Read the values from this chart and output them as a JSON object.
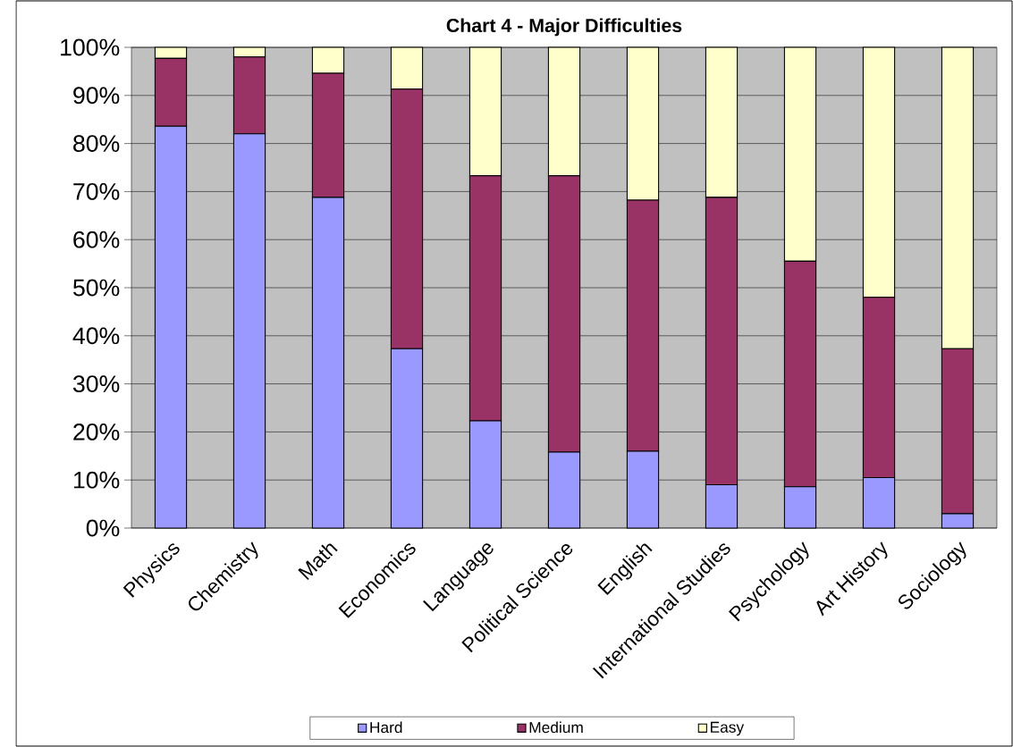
{
  "chart_data": {
    "type": "bar",
    "title": "Chart 4 - Major Difficulties",
    "stacked": true,
    "categories": [
      "Physics",
      "Chemistry",
      "Math",
      "Economics",
      "Language",
      "Political Science",
      "English",
      "International Studies",
      "Psychology",
      "Art History",
      "Sociology"
    ],
    "series": [
      {
        "name": "Hard",
        "color": "#9999ff",
        "values": [
          83.6,
          82.0,
          68.8,
          37.3,
          22.3,
          15.8,
          16.0,
          9.0,
          8.6,
          10.5,
          3.0
        ]
      },
      {
        "name": "Medium",
        "color": "#993366",
        "values": [
          14.1,
          16.0,
          25.8,
          54.0,
          51.0,
          57.5,
          52.2,
          59.8,
          46.9,
          37.5,
          34.3
        ]
      },
      {
        "name": "Easy",
        "color": "#ffffcc",
        "values": [
          2.3,
          2.0,
          5.4,
          8.7,
          26.7,
          26.7,
          31.8,
          31.2,
          44.5,
          52.0,
          62.7
        ]
      }
    ],
    "ylim": [
      0,
      100
    ],
    "yticks": [
      {
        "value": 0,
        "label": "0%"
      },
      {
        "value": 10,
        "label": "10%"
      },
      {
        "value": 20,
        "label": "20%"
      },
      {
        "value": 30,
        "label": "30%"
      },
      {
        "value": 40,
        "label": "40%"
      },
      {
        "value": 50,
        "label": "50%"
      },
      {
        "value": 60,
        "label": "60%"
      },
      {
        "value": 70,
        "label": "70%"
      },
      {
        "value": 80,
        "label": "80%"
      },
      {
        "value": 90,
        "label": "90%"
      },
      {
        "value": 100,
        "label": "100%"
      }
    ],
    "grid": "y",
    "legend": "bottom"
  }
}
